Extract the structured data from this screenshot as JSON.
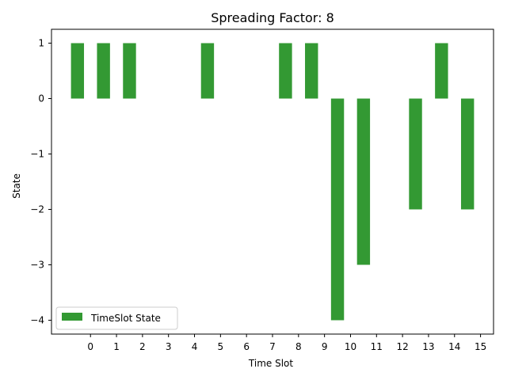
{
  "chart_data": {
    "type": "bar",
    "title": "Spreading Factor: 8",
    "xlabel": "Time Slot",
    "ylabel": "State",
    "x_tick_labels": [
      "0",
      "1",
      "2",
      "3",
      "4",
      "5",
      "6",
      "7",
      "8",
      "9",
      "10",
      "11",
      "12",
      "13",
      "14",
      "15"
    ],
    "y_tick_labels": [
      "1",
      "0",
      "−1",
      "−2",
      "−3",
      "−4"
    ],
    "y_ticks": [
      1,
      0,
      -1,
      -2,
      -3,
      -4
    ],
    "ylim": [
      -4.25,
      1.25
    ],
    "grid": false,
    "legend_position": "lower-left",
    "series": [
      {
        "name": "TimeSlot State",
        "color": "#339933",
        "x": [
          -0.5,
          0.5,
          1.5,
          2.5,
          3.5,
          4.5,
          5.5,
          6.5,
          7.5,
          8.5,
          9.5,
          10.5,
          11.5,
          12.5,
          13.5,
          14.5
        ],
        "values": [
          1,
          1,
          1,
          0,
          0,
          1,
          0,
          0,
          1,
          1,
          -4,
          -3,
          0,
          -2,
          1,
          -2
        ]
      }
    ]
  }
}
